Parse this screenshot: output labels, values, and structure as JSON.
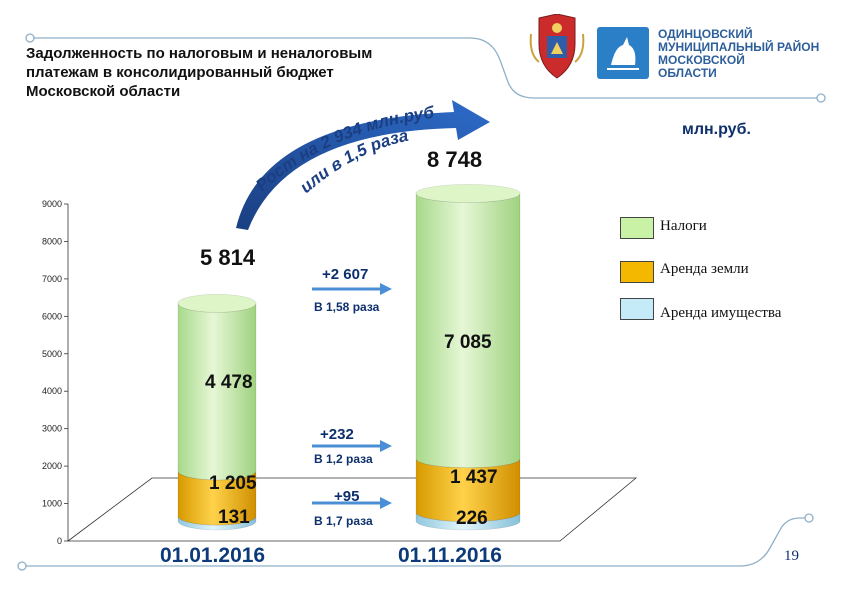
{
  "header": {
    "title": "Задолженность по налоговым и неналоговым\nплатежам в консолидированный бюджет\nМосковской области",
    "org_lines": [
      "ОДИНЦОВСКИЙ",
      "МУНИЦИПАЛЬНЫЙ РАЙОН",
      "МОСКОВСКОЙ",
      "ОБЛАСТИ"
    ],
    "coat_of_arms_icon": "moscow-oblast-coat-of-arms",
    "logo_icon": "odintsovo-district-logo"
  },
  "unit": "млн.руб.",
  "growth_note": {
    "line1": "Рост на 2 934 млн.руб.",
    "line2": "или в 1,5 раза"
  },
  "chart_data": {
    "type": "bar",
    "stacked": true,
    "categories": [
      "01.01.2016",
      "01.11.2016"
    ],
    "series": [
      {
        "name": "Аренда имущества",
        "values": [
          131,
          226
        ],
        "color": "#bfe4f3"
      },
      {
        "name": "Аренда земли",
        "values": [
          1205,
          1437
        ],
        "color": "#f0b400"
      },
      {
        "name": "Налоги",
        "values": [
          4478,
          7085
        ],
        "color": "#c9eaa8"
      }
    ],
    "totals": [
      5814,
      8748
    ],
    "value_labels": {
      "totals": [
        "5 814",
        "8 748"
      ],
      "series": [
        [
          "131",
          "226"
        ],
        [
          "1 205",
          "1 437"
        ],
        [
          "4 478",
          "7 085"
        ]
      ]
    },
    "ylim": [
      0,
      9000
    ],
    "yticks": [
      0,
      1000,
      2000,
      3000,
      4000,
      5000,
      6000,
      7000,
      8000,
      9000
    ],
    "legend_position": "right",
    "changes": [
      {
        "delta": "+2 607",
        "ratio": "В 1,58 раза"
      },
      {
        "delta": "+232",
        "ratio": "В 1,2 раза"
      },
      {
        "delta": "+95",
        "ratio": "В 1,7 раза"
      }
    ]
  },
  "page_number": "19"
}
